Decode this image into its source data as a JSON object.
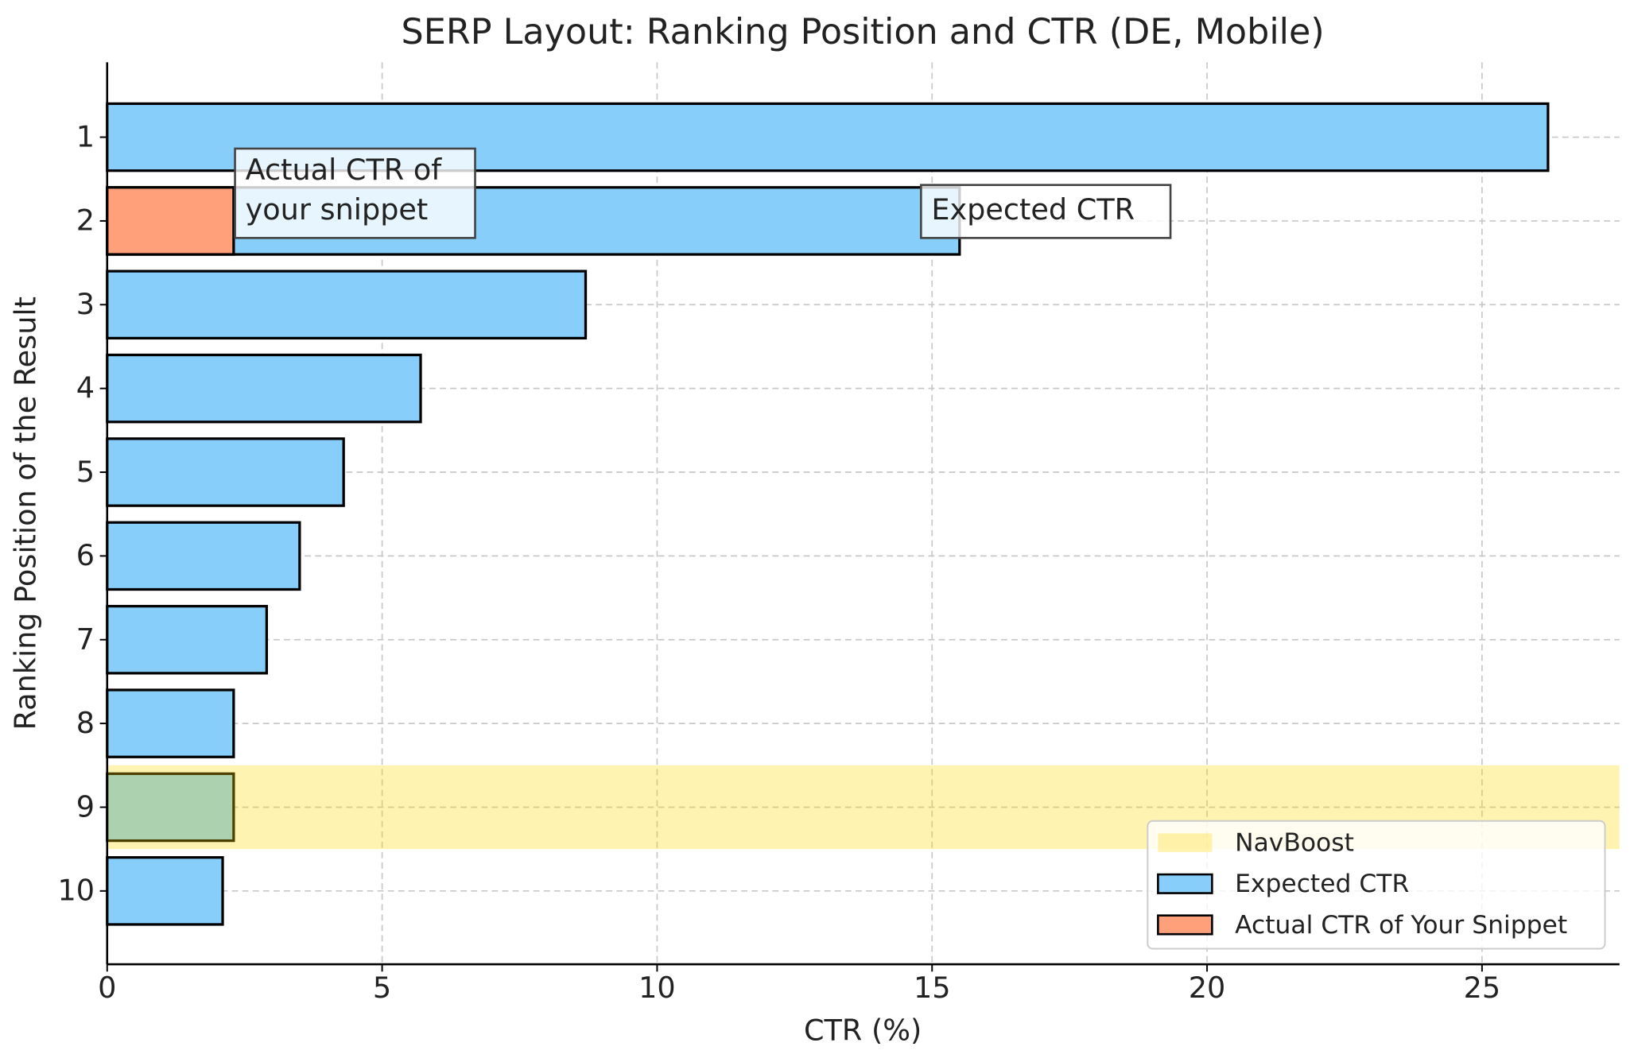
{
  "chart_data": {
    "type": "bar",
    "orientation": "horizontal",
    "title": "SERP Layout: Ranking Position and CTR (DE, Mobile)",
    "x_label": "CTR (%)",
    "y_label": "Ranking Position of the Result",
    "categories": [
      "1",
      "2",
      "3",
      "4",
      "5",
      "6",
      "7",
      "8",
      "9",
      "10"
    ],
    "series": [
      {
        "name": "Expected CTR",
        "color": "#87cefa",
        "values": [
          26.2,
          15.5,
          8.7,
          5.7,
          4.3,
          3.5,
          2.9,
          2.3,
          2.3,
          2.1
        ]
      },
      {
        "name": "Actual CTR of Your Snippet",
        "color": "#ffa07a",
        "values": [
          null,
          2.3,
          null,
          null,
          null,
          null,
          null,
          null,
          null,
          null
        ]
      }
    ],
    "span": {
      "name": "NavBoost",
      "color": "#ffd700",
      "category": "9"
    },
    "xlim": [
      0,
      27.5
    ],
    "xticks": [
      0,
      5,
      10,
      15,
      20,
      25
    ],
    "grid": true,
    "legend": "lower right",
    "annotations": [
      {
        "lines": [
          "Actual CTR of",
          "your snippet"
        ]
      },
      {
        "lines": [
          "Expected CTR"
        ]
      }
    ]
  }
}
